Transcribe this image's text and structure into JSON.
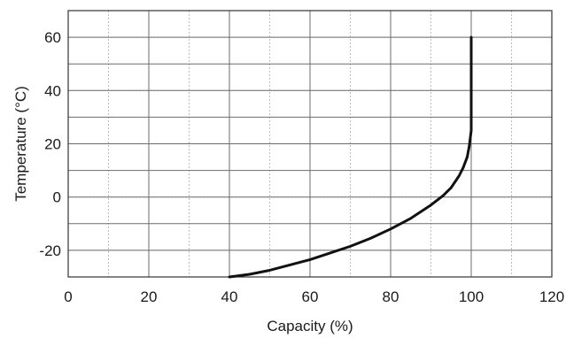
{
  "chart_data": {
    "type": "line",
    "title": "",
    "xlabel": "Capacity (%)",
    "ylabel": "Temperature (°C)",
    "xlim": [
      0,
      120
    ],
    "ylim": [
      -30,
      70
    ],
    "xticks": [
      0,
      20,
      40,
      60,
      80,
      100,
      120
    ],
    "yticks": [
      -20,
      0,
      20,
      40,
      60
    ],
    "x_tick_labels": [
      "0",
      "20",
      "40",
      "60",
      "80",
      "100",
      "120"
    ],
    "y_tick_labels": [
      "-20",
      "0",
      "20",
      "40",
      "60"
    ],
    "grid": true,
    "legend": "none",
    "series": [
      {
        "name": "",
        "color": "#111111",
        "x": [
          40,
          45,
          50,
          55,
          60,
          65,
          70,
          75,
          80,
          85,
          90,
          93,
          95,
          97,
          98,
          99,
          99.5,
          100,
          100,
          100
        ],
        "y": [
          -30,
          -29,
          -27.5,
          -25.5,
          -23.5,
          -21,
          -18.5,
          -15.5,
          -12,
          -8,
          -3,
          0.5,
          3.5,
          8,
          11,
          15,
          19,
          25,
          40,
          60
        ]
      }
    ]
  }
}
